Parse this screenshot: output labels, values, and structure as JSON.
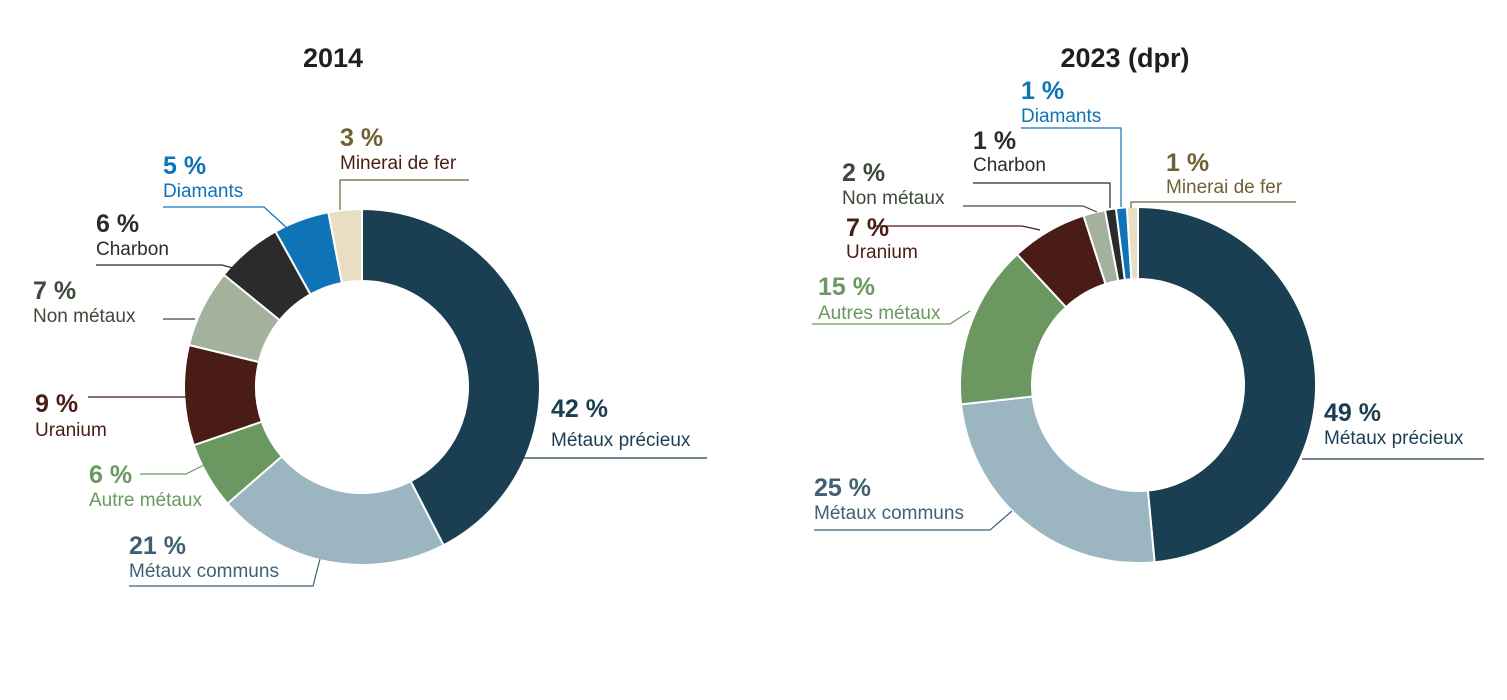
{
  "chart_data": [
    {
      "type": "pie",
      "title": "2014",
      "slices": [
        {
          "label": "Métaux précieux",
          "value": 42,
          "pct_text": "42 %",
          "color": "#1a3f52",
          "label_color": "#1a3f52"
        },
        {
          "label": "Métaux communs",
          "value": 21,
          "pct_text": "21 %",
          "color": "#9bb5c1",
          "label_color": "#3f6173"
        },
        {
          "label": "Autre métaux",
          "value": 6,
          "pct_text": "6 %",
          "color": "#6a9860",
          "label_color": "#6a9860"
        },
        {
          "label": "Uranium",
          "value": 9,
          "pct_text": "9 %",
          "color": "#4a1c16",
          "label_color": "#4a1c16"
        },
        {
          "label": "Non métaux",
          "value": 7,
          "pct_text": "7 %",
          "color": "#a3b19d",
          "label_color": "#3d4a3a"
        },
        {
          "label": "Charbon",
          "value": 6,
          "pct_text": "6 %",
          "color": "#2b2b2b",
          "label_color": "#2b2b2b"
        },
        {
          "label": "Diamants",
          "value": 5,
          "pct_text": "5 %",
          "color": "#0f73b7",
          "label_color": "#0f73b7"
        },
        {
          "label": "Minerai de fer",
          "value": 3,
          "pct_text": "3 %",
          "color": "#e8dfc3",
          "label_color": "#6e6233",
          "label_sub_color": "#4a1c16"
        }
      ]
    },
    {
      "type": "pie",
      "title": "2023 (dpr)",
      "slices": [
        {
          "label": "Métaux précieux",
          "value": 49,
          "pct_text": "49 %",
          "color": "#1a3f52",
          "label_color": "#1a3f52"
        },
        {
          "label": "Métaux communs",
          "value": 25,
          "pct_text": "25 %",
          "color": "#9bb5c1",
          "label_color": "#3f6173"
        },
        {
          "label": "Autres métaux",
          "value": 15,
          "pct_text": "15 %",
          "color": "#6a9860",
          "label_color": "#6a9860"
        },
        {
          "label": "Uranium",
          "value": 7,
          "pct_text": "7 %",
          "color": "#4a1c16",
          "label_color": "#4a1c16"
        },
        {
          "label": "Non métaux",
          "value": 2,
          "pct_text": "2 %",
          "color": "#a3b19d",
          "label_color": "#3d4a3a"
        },
        {
          "label": "Charbon",
          "value": 1,
          "pct_text": "1 %",
          "color": "#2b2b2b",
          "label_color": "#2b2b2b"
        },
        {
          "label": "Diamants",
          "value": 1,
          "pct_text": "1 %",
          "color": "#0f73b7",
          "label_color": "#0f73b7"
        },
        {
          "label": "Minerai de fer",
          "value": 1,
          "pct_text": "1 %",
          "color": "#e8dfc3",
          "label_color": "#6e6233",
          "label_sub_color": "#6e6233"
        }
      ]
    }
  ]
}
